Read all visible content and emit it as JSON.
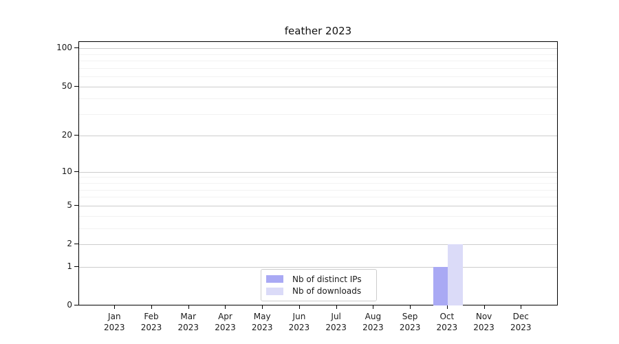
{
  "chart_data": {
    "type": "bar",
    "title": "feather 2023",
    "categories": [
      "Jan 2023",
      "Feb 2023",
      "Mar 2023",
      "Apr 2023",
      "May 2023",
      "Jun 2023",
      "Jul 2023",
      "Aug 2023",
      "Sep 2023",
      "Oct 2023",
      "Nov 2023",
      "Dec 2023"
    ],
    "series": [
      {
        "name": "Nb of distinct IPs",
        "color": "#a9a9f4",
        "values": [
          0,
          0,
          0,
          0,
          0,
          0,
          0,
          0,
          0,
          1,
          0,
          0
        ]
      },
      {
        "name": "Nb of downloads",
        "color": "#dbdbf8",
        "values": [
          0,
          0,
          0,
          0,
          0,
          0,
          0,
          0,
          0,
          2,
          0,
          0
        ]
      }
    ],
    "xlabel": "",
    "ylabel": "",
    "yscale": "log1p",
    "ylim": [
      0,
      112
    ],
    "yticks": [
      0,
      1,
      2,
      5,
      10,
      20,
      50,
      100
    ],
    "minor_yticks": [
      3,
      4,
      6,
      7,
      8,
      9,
      30,
      40,
      60,
      70,
      80,
      90
    ],
    "grid": "horizontal",
    "legend_position": "lower center inside",
    "colors": {
      "grid_major": "#cccccc",
      "grid_minor": "#f2f2f2",
      "axis": "#000000",
      "text": "#1a1a1a",
      "legend_border": "#cccccc",
      "background": "#ffffff"
    }
  }
}
